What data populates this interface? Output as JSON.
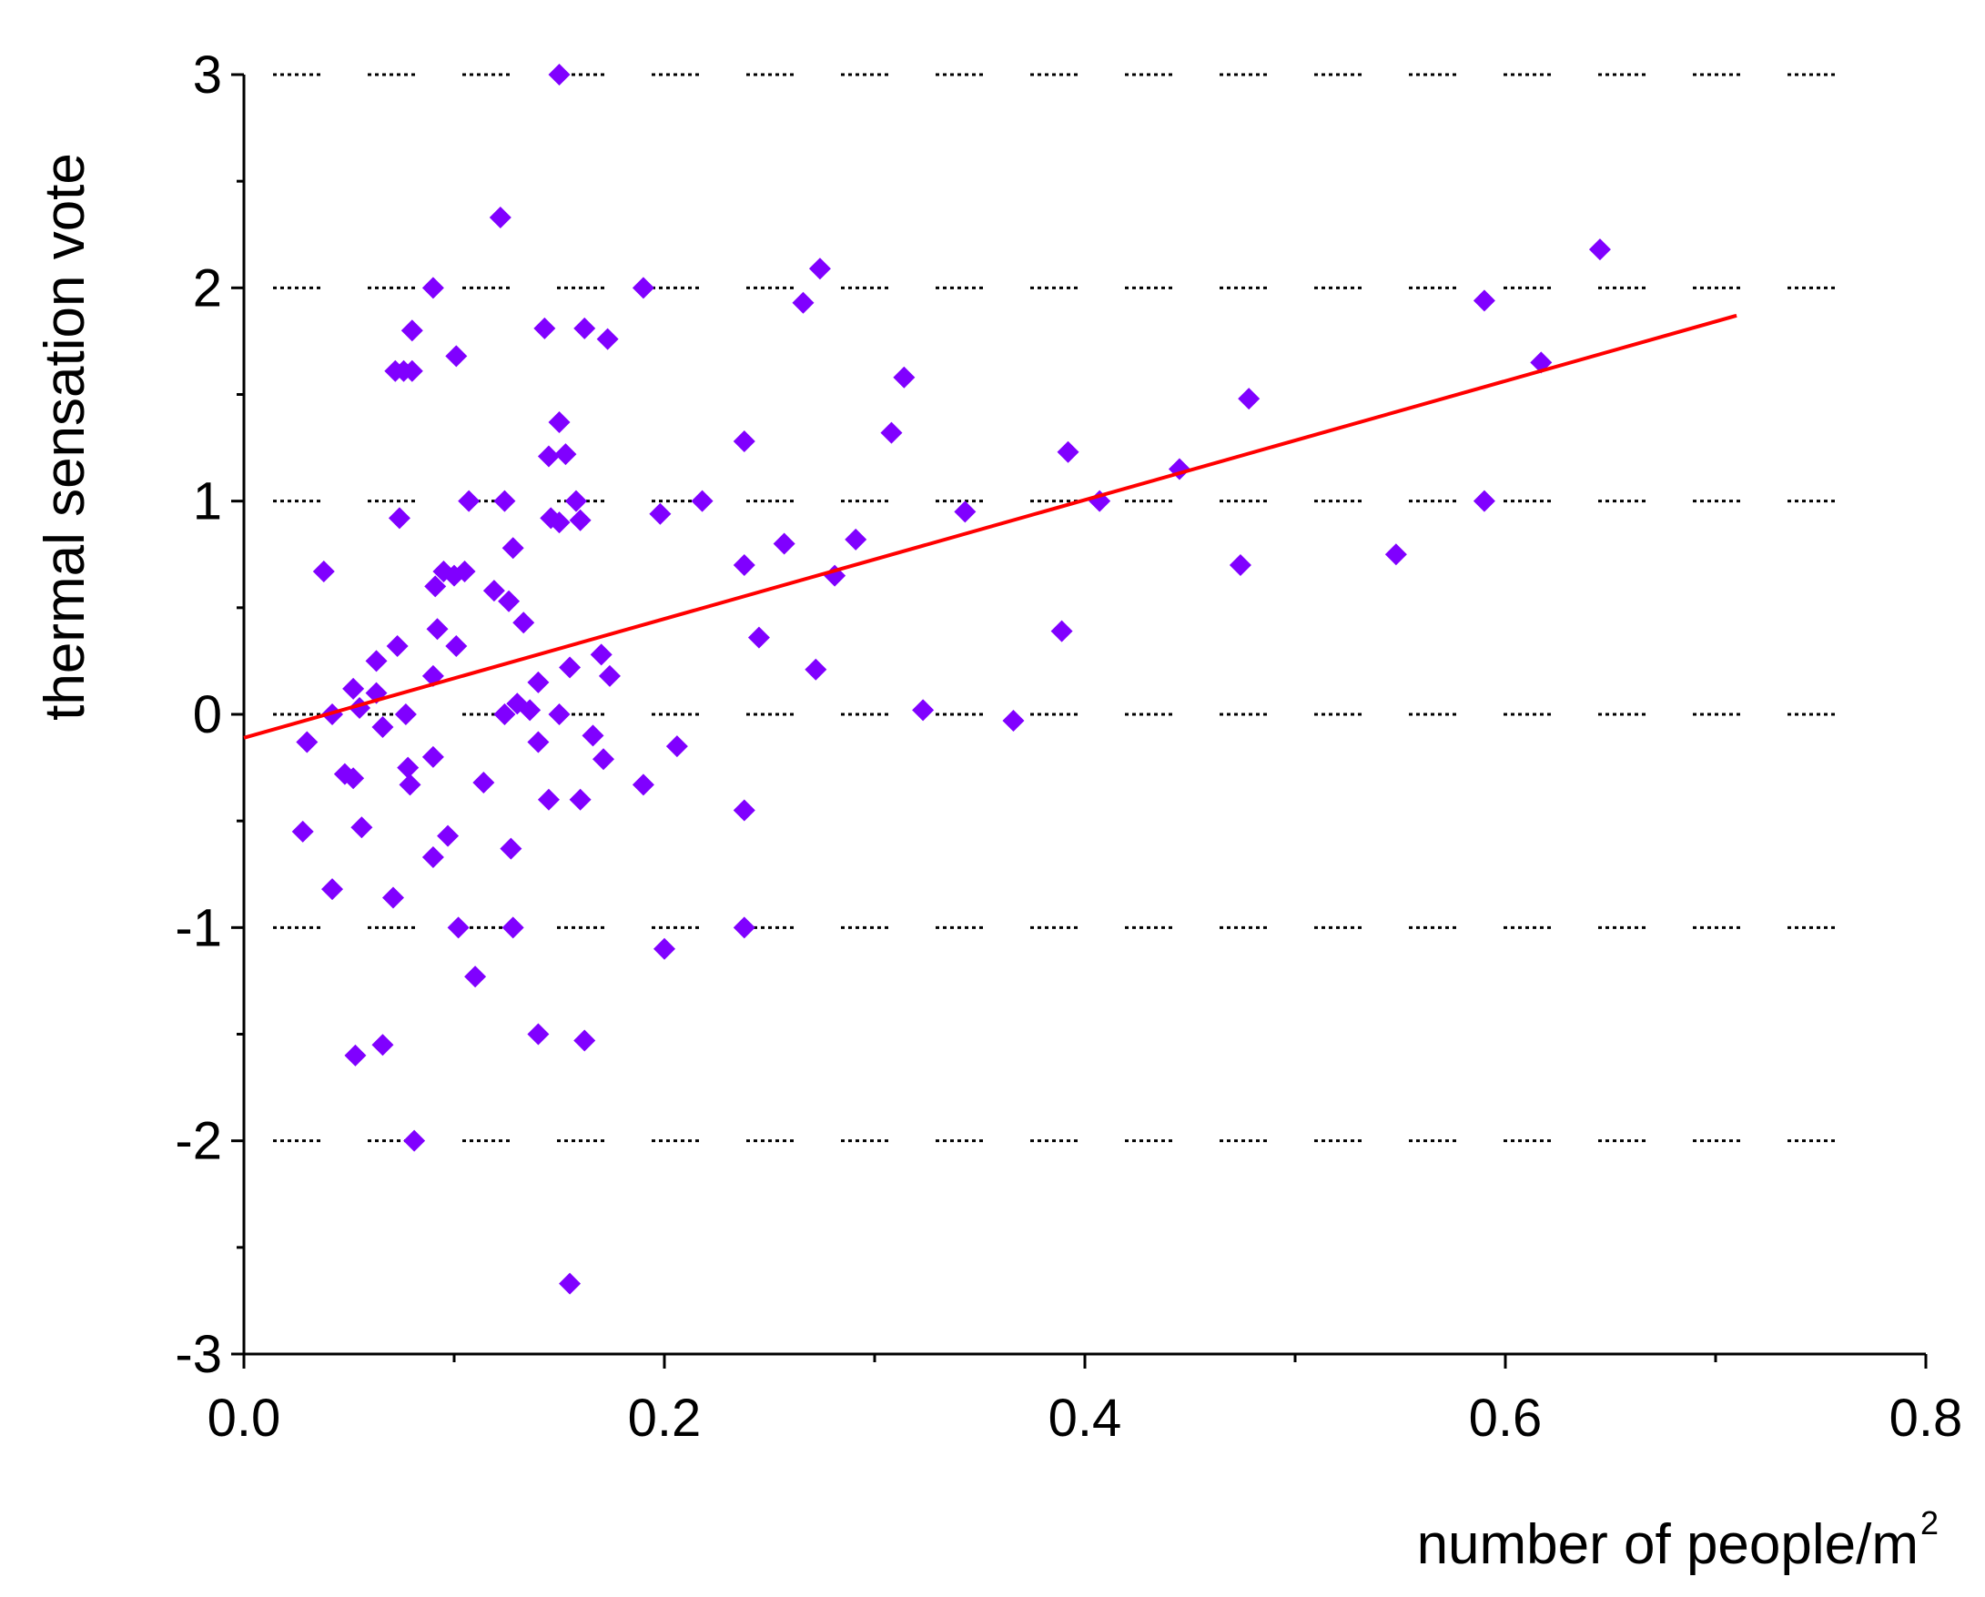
{
  "chart_data": {
    "type": "scatter",
    "xlabel": "number of people/m",
    "xlabel_superscript": "2",
    "ylabel": "thermal sensation vote",
    "xlim": [
      0.0,
      0.8
    ],
    "ylim": [
      -3,
      3
    ],
    "x_ticks": [
      "0.0",
      "0.2",
      "0.4",
      "0.6",
      "0.8"
    ],
    "y_ticks": [
      "3",
      "2",
      "1",
      "0",
      "-1",
      "-2",
      "-3"
    ],
    "grid": "dotted horizontal at y = -2, -1, 0, 1, 2, 3",
    "colors": {
      "points": "#8000ff",
      "fit_line": "#ff0000",
      "axes": "#000000",
      "grid": "#000000"
    },
    "marker": "diamond",
    "series": [
      {
        "values": [
          [
            0.15,
            3.0
          ],
          [
            0.122,
            2.33
          ],
          [
            0.09,
            2.0
          ],
          [
            0.19,
            2.0
          ],
          [
            0.08,
            1.8
          ],
          [
            0.143,
            1.81
          ],
          [
            0.162,
            1.81
          ],
          [
            0.173,
            1.76
          ],
          [
            0.072,
            1.61
          ],
          [
            0.076,
            1.61
          ],
          [
            0.08,
            1.61
          ],
          [
            0.101,
            1.68
          ],
          [
            0.15,
            1.37
          ],
          [
            0.145,
            1.21
          ],
          [
            0.153,
            1.22
          ],
          [
            0.107,
            1.0
          ],
          [
            0.124,
            1.0
          ],
          [
            0.158,
            1.0
          ],
          [
            0.074,
            0.92
          ],
          [
            0.146,
            0.92
          ],
          [
            0.15,
            0.9
          ],
          [
            0.16,
            0.91
          ],
          [
            0.128,
            0.78
          ],
          [
            0.091,
            0.6
          ],
          [
            0.095,
            0.67
          ],
          [
            0.1,
            0.65
          ],
          [
            0.105,
            0.67
          ],
          [
            0.119,
            0.58
          ],
          [
            0.126,
            0.53
          ],
          [
            0.133,
            0.43
          ],
          [
            0.092,
            0.4
          ],
          [
            0.101,
            0.32
          ],
          [
            0.038,
            0.67
          ],
          [
            0.063,
            0.25
          ],
          [
            0.073,
            0.32
          ],
          [
            0.09,
            0.18
          ],
          [
            0.052,
            0.12
          ],
          [
            0.063,
            0.1
          ],
          [
            0.055,
            0.03
          ],
          [
            0.042,
            0.0
          ],
          [
            0.077,
            0.0
          ],
          [
            0.066,
            -0.06
          ],
          [
            0.124,
            0.0
          ],
          [
            0.13,
            0.05
          ],
          [
            0.136,
            0.02
          ],
          [
            0.14,
            0.15
          ],
          [
            0.15,
            0.0
          ],
          [
            0.155,
            0.22
          ],
          [
            0.17,
            0.28
          ],
          [
            0.174,
            0.18
          ],
          [
            0.03,
            -0.13
          ],
          [
            0.048,
            -0.28
          ],
          [
            0.052,
            -0.3
          ],
          [
            0.078,
            -0.25
          ],
          [
            0.079,
            -0.33
          ],
          [
            0.09,
            -0.2
          ],
          [
            0.114,
            -0.32
          ],
          [
            0.14,
            -0.13
          ],
          [
            0.166,
            -0.1
          ],
          [
            0.171,
            -0.21
          ],
          [
            0.19,
            -0.33
          ],
          [
            0.206,
            -0.15
          ],
          [
            0.145,
            -0.4
          ],
          [
            0.16,
            -0.4
          ],
          [
            0.028,
            -0.55
          ],
          [
            0.056,
            -0.53
          ],
          [
            0.097,
            -0.57
          ],
          [
            0.127,
            -0.63
          ],
          [
            0.09,
            -0.67
          ],
          [
            0.042,
            -0.82
          ],
          [
            0.071,
            -0.86
          ],
          [
            0.102,
            -1.0
          ],
          [
            0.128,
            -1.0
          ],
          [
            0.11,
            -1.23
          ],
          [
            0.14,
            -1.5
          ],
          [
            0.162,
            -1.53
          ],
          [
            0.066,
            -1.55
          ],
          [
            0.053,
            -1.6
          ],
          [
            0.081,
            -2.0
          ],
          [
            0.155,
            -2.67
          ],
          [
            0.2,
            -1.1
          ],
          [
            0.238,
            -1.0
          ],
          [
            0.238,
            -0.45
          ],
          [
            0.198,
            0.94
          ],
          [
            0.218,
            1.0
          ],
          [
            0.238,
            1.28
          ],
          [
            0.238,
            0.7
          ],
          [
            0.245,
            0.36
          ],
          [
            0.257,
            0.8
          ],
          [
            0.266,
            1.93
          ],
          [
            0.274,
            2.09
          ],
          [
            0.272,
            0.21
          ],
          [
            0.281,
            0.65
          ],
          [
            0.291,
            0.82
          ],
          [
            0.308,
            1.32
          ],
          [
            0.314,
            1.58
          ],
          [
            0.323,
            0.02
          ],
          [
            0.343,
            0.95
          ],
          [
            0.366,
            -0.03
          ],
          [
            0.389,
            0.39
          ],
          [
            0.392,
            1.23
          ],
          [
            0.407,
            1.0
          ],
          [
            0.445,
            1.15
          ],
          [
            0.474,
            0.7
          ],
          [
            0.478,
            1.48
          ],
          [
            0.548,
            0.75
          ],
          [
            0.59,
            1.94
          ],
          [
            0.59,
            1.0
          ],
          [
            0.617,
            1.65
          ],
          [
            0.645,
            2.18
          ]
        ]
      }
    ],
    "fit_line": {
      "x": [
        0.0,
        0.71
      ],
      "y": [
        -0.11,
        1.87
      ]
    }
  }
}
